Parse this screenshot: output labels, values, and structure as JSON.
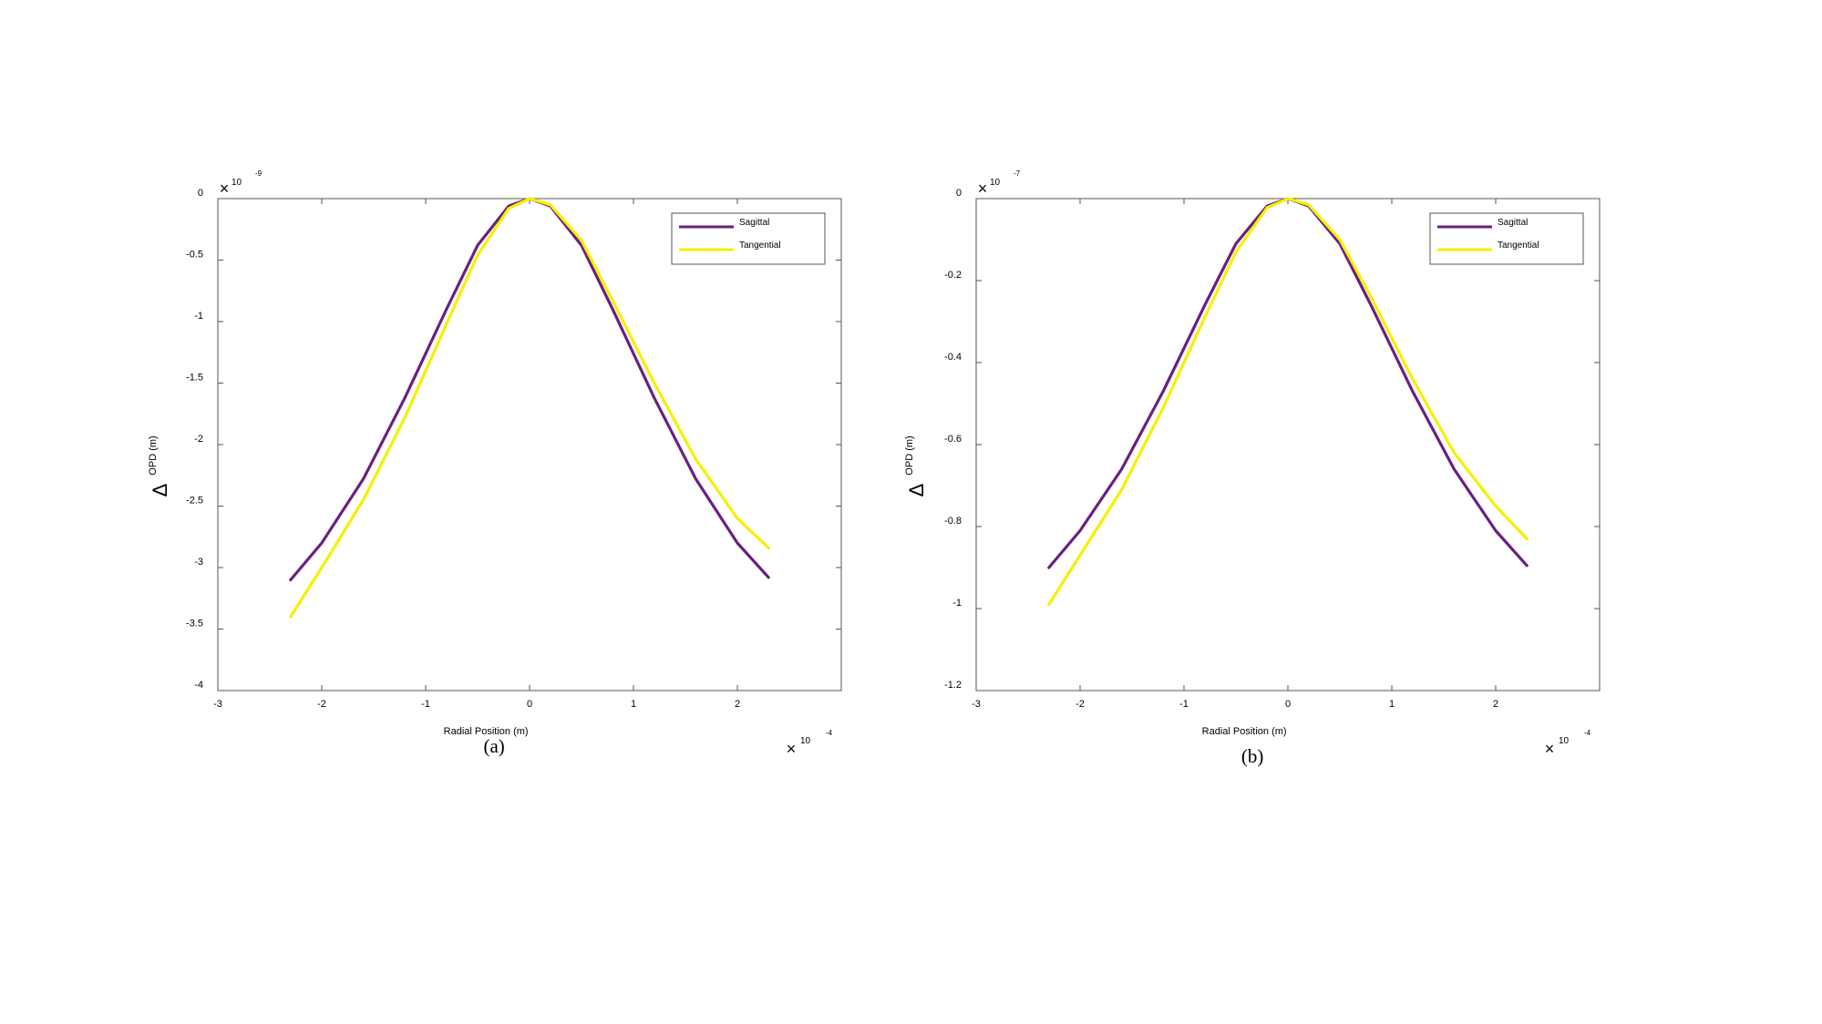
{
  "chart_data": [
    {
      "type": "line",
      "panel_label": "(a)",
      "xlabel": "Radial Position (m)",
      "ylabel": "OPD (m)",
      "ylabel_symbol": "Δ",
      "x_exponent_base": "10",
      "x_exponent_power": "-4",
      "y_exponent_base": "10",
      "y_exponent_power": "-9",
      "xlim": [
        -3,
        3
      ],
      "ylim": [
        -4,
        0
      ],
      "xticks": [
        -3,
        -2,
        -1,
        0,
        1,
        2
      ],
      "yticks": [
        0,
        -0.5,
        -1,
        -1.5,
        -2,
        -2.5,
        -3,
        -3.5,
        -4
      ],
      "legend_position": "top-right",
      "grid": false,
      "series": [
        {
          "name": "Sagittal",
          "color": "#6B1F80",
          "x": [
            -2.3,
            -2.0,
            -1.6,
            -1.2,
            -0.8,
            -0.5,
            -0.2,
            0,
            0.2,
            0.5,
            0.8,
            1.2,
            1.6,
            2.0,
            2.3
          ],
          "y": [
            -3.1,
            -2.8,
            -2.28,
            -1.62,
            -0.9,
            -0.38,
            -0.06,
            0,
            -0.06,
            -0.38,
            -0.9,
            -1.62,
            -2.28,
            -2.8,
            -3.08
          ]
        },
        {
          "name": "Tangential",
          "color": "#F5F000",
          "x": [
            -2.3,
            -2.0,
            -1.6,
            -1.2,
            -0.8,
            -0.5,
            -0.2,
            0,
            0.2,
            0.5,
            0.8,
            1.2,
            1.6,
            2.0,
            2.3
          ],
          "y": [
            -3.4,
            -3.0,
            -2.45,
            -1.78,
            -1.02,
            -0.46,
            -0.08,
            0,
            -0.05,
            -0.34,
            -0.83,
            -1.5,
            -2.12,
            -2.6,
            -2.84
          ]
        }
      ]
    },
    {
      "type": "line",
      "panel_label": "(b)",
      "xlabel": "Radial Position  (m)",
      "ylabel": "OPD  (m)",
      "ylabel_symbol": "Δ",
      "x_exponent_base": "10",
      "x_exponent_power": "-4",
      "y_exponent_base": "10",
      "y_exponent_power": "-7",
      "xlim": [
        -3,
        3
      ],
      "ylim": [
        -1.2,
        0
      ],
      "xticks": [
        -3,
        -2,
        -1,
        0,
        1,
        2
      ],
      "yticks": [
        0,
        -0.2,
        -0.4,
        -0.6,
        -0.8,
        -1,
        -1.2
      ],
      "legend_position": "top-right",
      "grid": false,
      "series": [
        {
          "name": "Sagittal",
          "color": "#6B1F80",
          "x": [
            -2.3,
            -2.0,
            -1.6,
            -1.2,
            -0.8,
            -0.5,
            -0.2,
            0,
            0.2,
            0.5,
            0.8,
            1.2,
            1.6,
            2.0,
            2.3
          ],
          "y": [
            -0.9,
            -0.81,
            -0.66,
            -0.47,
            -0.26,
            -0.11,
            -0.018,
            0,
            -0.018,
            -0.11,
            -0.26,
            -0.47,
            -0.66,
            -0.81,
            -0.895
          ]
        },
        {
          "name": "Tangential",
          "color": "#F5F000",
          "x": [
            -2.3,
            -2.0,
            -1.6,
            -1.2,
            -0.8,
            -0.5,
            -0.2,
            0,
            0.2,
            0.5,
            0.8,
            1.2,
            1.6,
            2.0,
            2.3
          ],
          "y": [
            -0.99,
            -0.87,
            -0.71,
            -0.51,
            -0.29,
            -0.13,
            -0.022,
            0,
            -0.015,
            -0.1,
            -0.24,
            -0.44,
            -0.62,
            -0.75,
            -0.83
          ]
        }
      ]
    }
  ]
}
